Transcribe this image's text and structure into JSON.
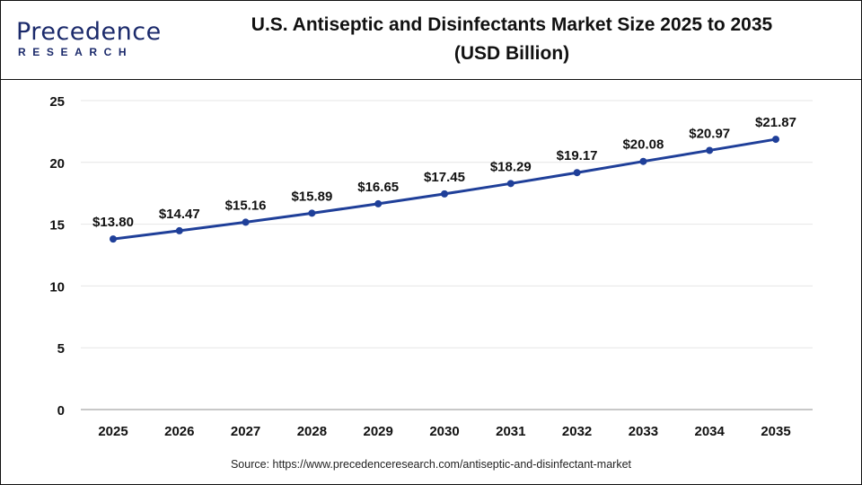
{
  "logo": {
    "main": "Precedence",
    "sub": "RESEARCH"
  },
  "colors": {
    "line": "#1f3f99",
    "brand": "#1b2a6b",
    "grid": "#e6e6e6"
  },
  "source": "Source: https://www.precedenceresearch.com/antiseptic-and-disinfectant-market",
  "chart_data": {
    "type": "line",
    "title": "U.S. Antiseptic and Disinfectants Market Size 2025 to 2035 (USD Billion)",
    "title_lines": [
      "U.S. Antiseptic and Disinfectants Market Size 2025 to 2035",
      "(USD Billion)"
    ],
    "categories": [
      "2025",
      "2026",
      "2027",
      "2028",
      "2029",
      "2030",
      "2031",
      "2032",
      "2033",
      "2034",
      "2035"
    ],
    "values": [
      13.8,
      14.47,
      15.16,
      15.89,
      16.65,
      17.45,
      18.29,
      19.17,
      20.08,
      20.97,
      21.87
    ],
    "data_labels": [
      "$13.80",
      "$14.47",
      "$15.16",
      "$15.89",
      "$16.65",
      "$17.45",
      "$18.29",
      "$19.17",
      "$20.08",
      "$20.97",
      "$21.87"
    ],
    "yticks": [
      0,
      5,
      10,
      15,
      20,
      25
    ],
    "ylim": [
      0,
      25
    ],
    "grid": true,
    "legend": "none"
  }
}
